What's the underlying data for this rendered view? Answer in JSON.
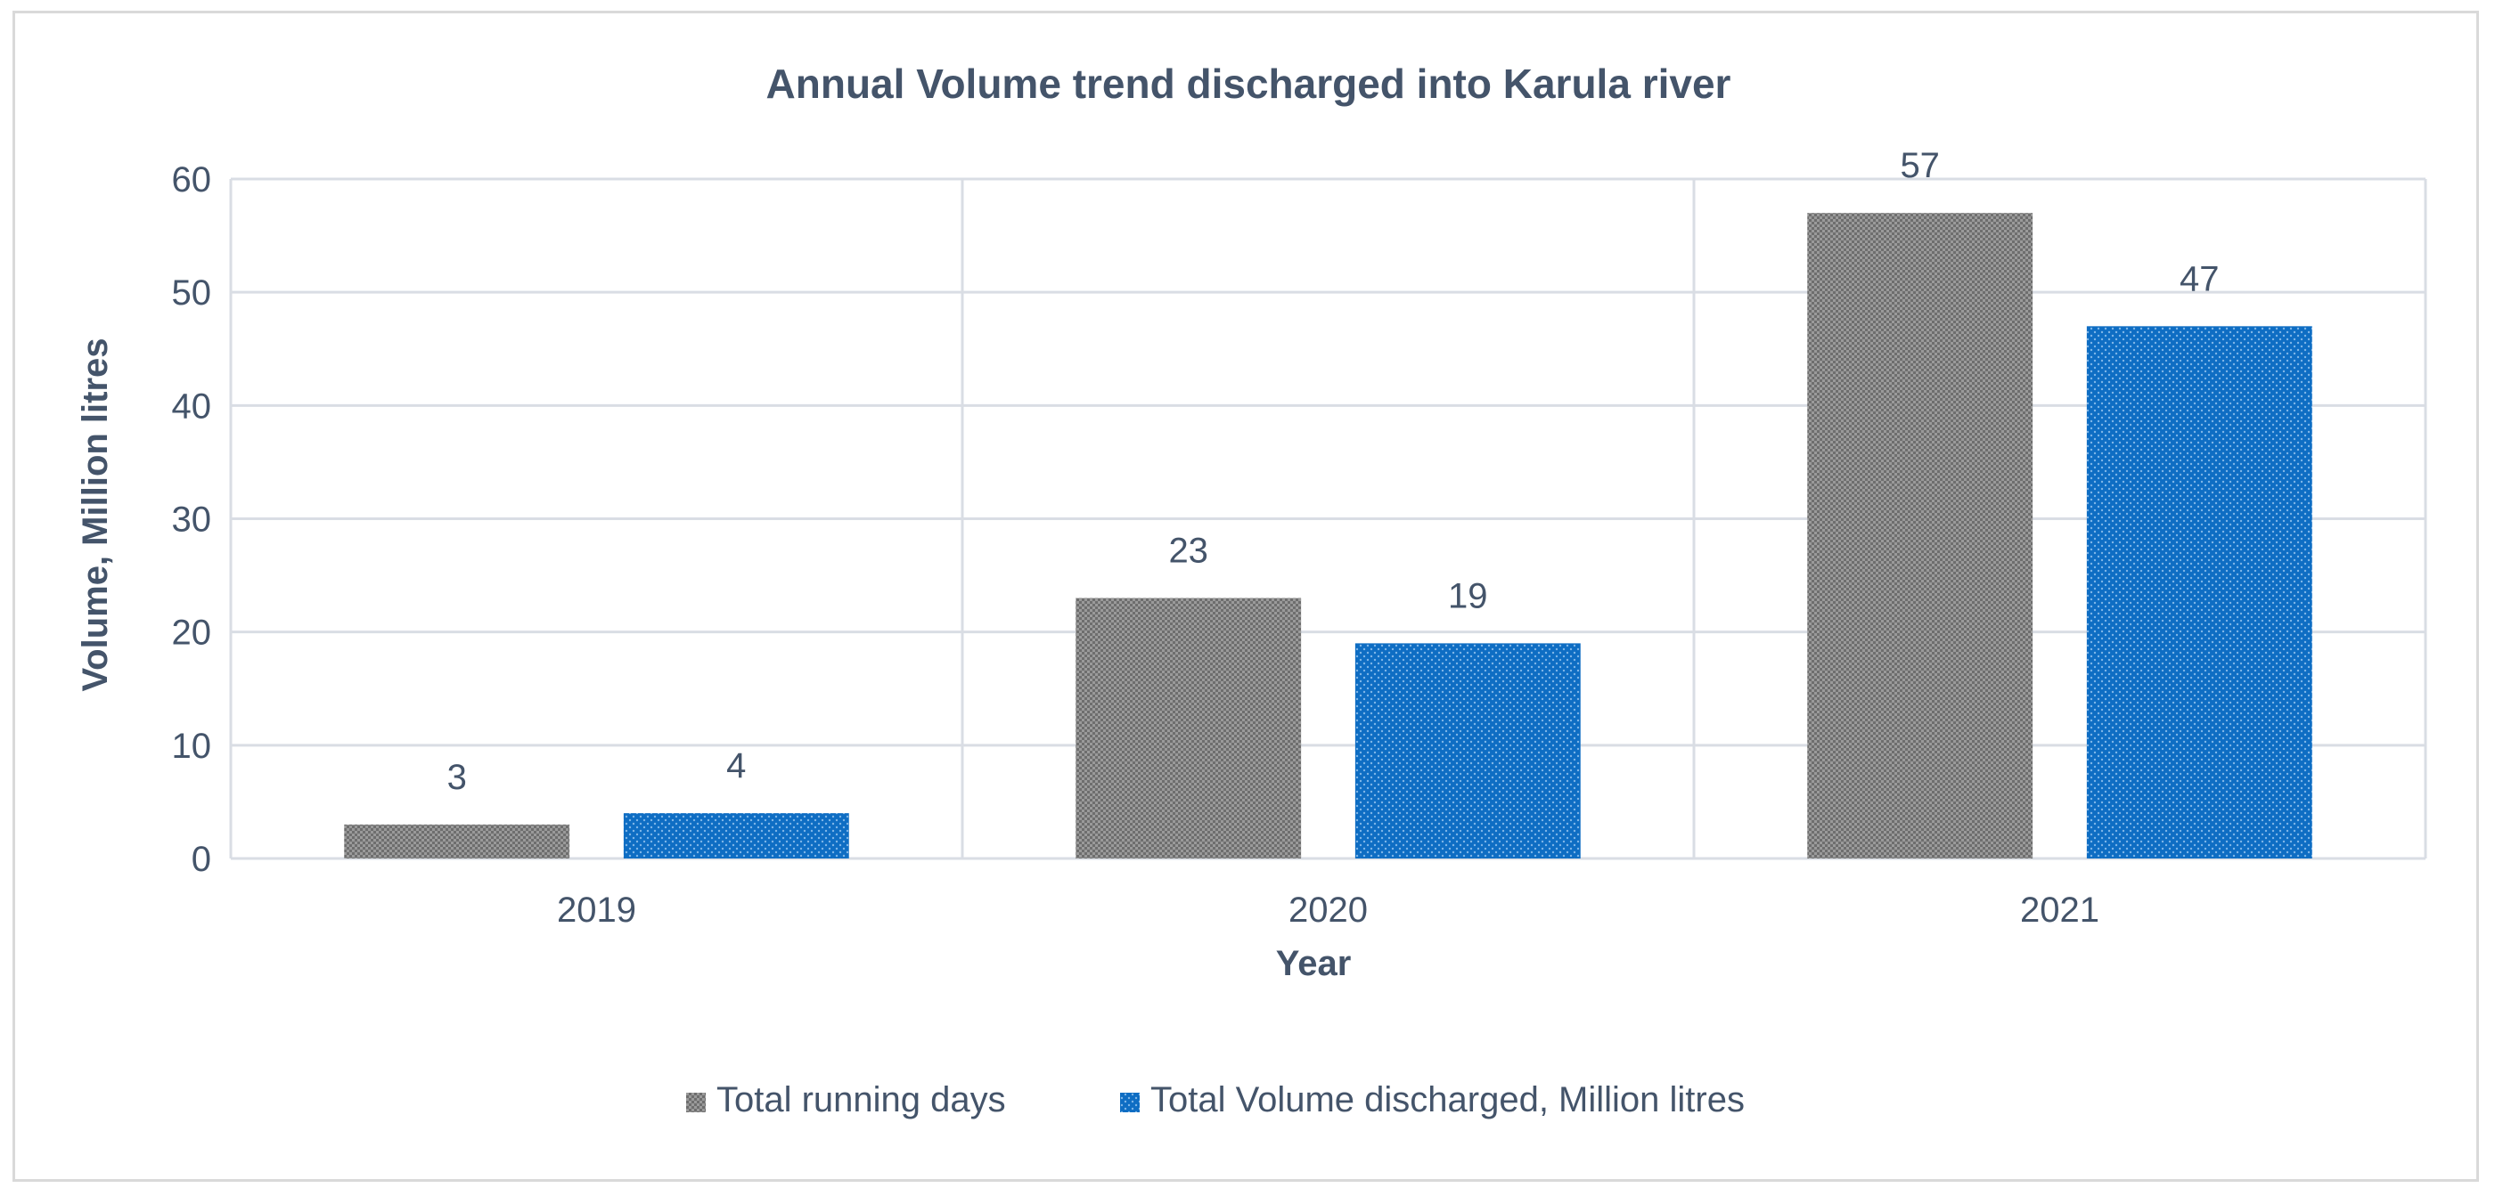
{
  "chart_data": {
    "type": "bar",
    "title": "Annual Volume trend discharged into Karula river",
    "xlabel": "Year",
    "ylabel": "Volume, Million litres",
    "categories": [
      "2019",
      "2020",
      "2021"
    ],
    "ylim": [
      0,
      60
    ],
    "yticks": [
      0,
      10,
      20,
      30,
      40,
      50,
      60
    ],
    "grid": true,
    "legend_position": "bottom",
    "series": [
      {
        "name": "Total running days",
        "values": [
          3,
          23,
          57
        ],
        "color": "#7f7f7f",
        "pattern": "crosshatch-gray"
      },
      {
        "name": "Total Volume discharged, Million litres",
        "values": [
          4,
          19,
          47
        ],
        "color": "#0b6fc7",
        "pattern": "dotted-blue"
      }
    ]
  }
}
